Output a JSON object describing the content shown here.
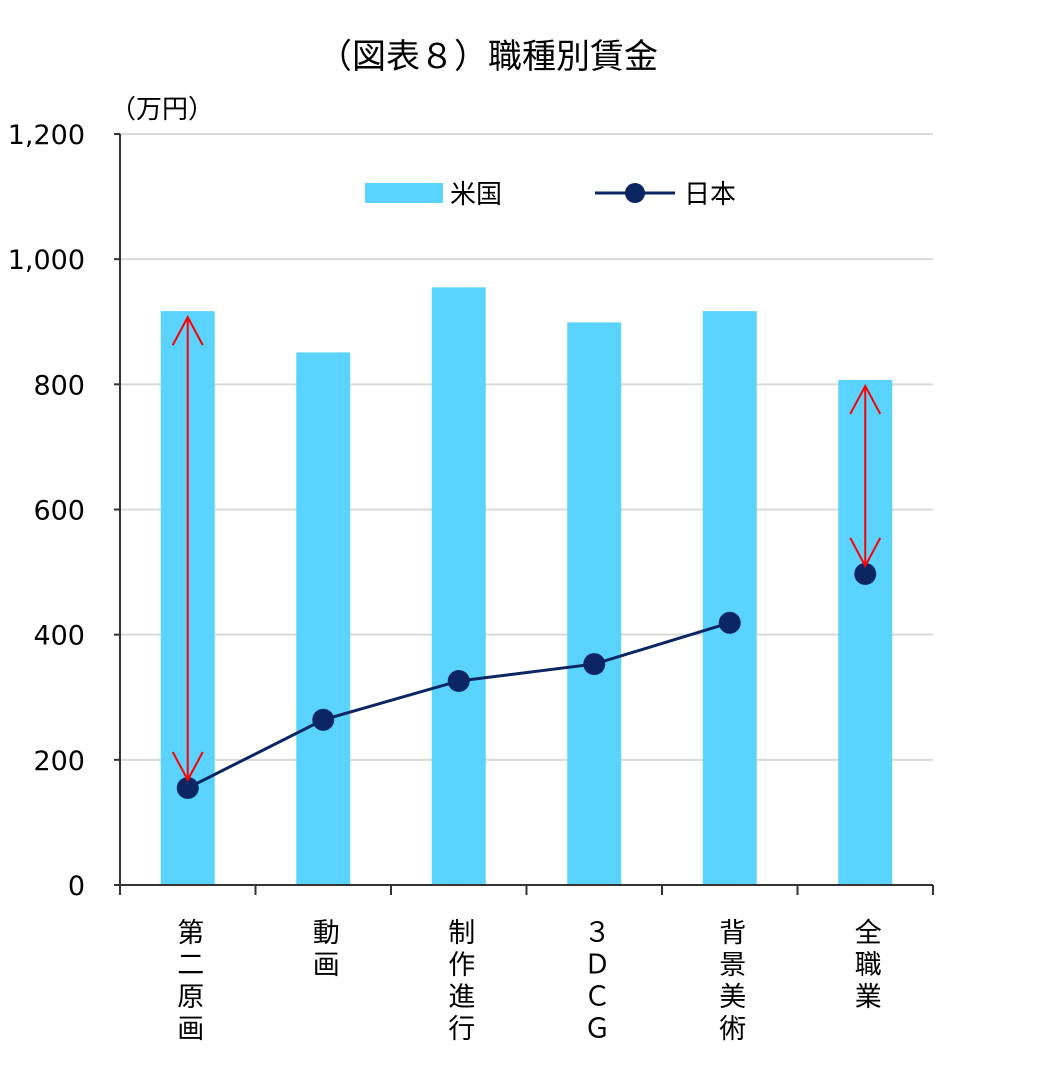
{
  "chart_data": {
    "type": "bar+line",
    "title": "（図表８）職種別賃金",
    "ylabel": "（万円）",
    "xlabel": "",
    "ylim": [
      0,
      1200
    ],
    "yticks": [
      0,
      200,
      400,
      600,
      800,
      1000,
      1200
    ],
    "ytick_labels": [
      "0",
      "200",
      "400",
      "600",
      "800",
      "1,000",
      "1,200"
    ],
    "grid": true,
    "legend_position": "top",
    "categories": [
      "第二原画",
      "動画",
      "制作進行",
      "３ＤＣＧ",
      "背景美術",
      "全職業"
    ],
    "series": [
      {
        "name": "米国",
        "type": "bar",
        "color": "#5BD3FF",
        "values": [
          917,
          851,
          955,
          899,
          917,
          807
        ]
      },
      {
        "name": "日本",
        "type": "line",
        "color": "#0B2663",
        "values": [
          155,
          264,
          326,
          353,
          419,
          497
        ],
        "line_connects_through_index": 4
      }
    ],
    "annotations": [
      {
        "type": "double-arrow",
        "color": "#FF0000",
        "category": "第二原画",
        "from": 917,
        "to": 155
      },
      {
        "type": "double-arrow",
        "color": "#FF0000",
        "category": "全職業",
        "from": 807,
        "to": 497
      }
    ]
  }
}
